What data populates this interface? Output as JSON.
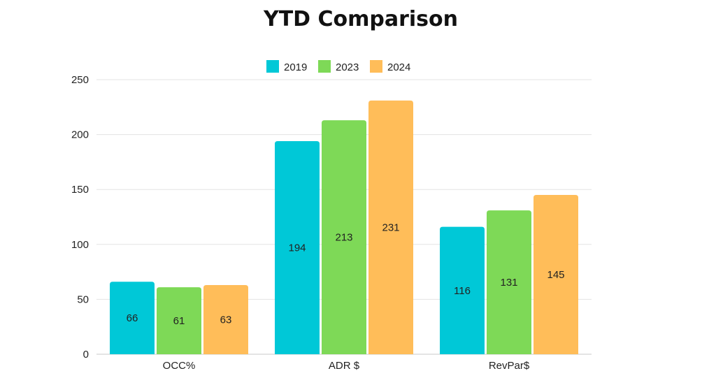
{
  "chart_data": {
    "type": "bar",
    "title": "YTD Comparison",
    "categories": [
      "OCC%",
      "ADR $",
      "RevPar$"
    ],
    "series": [
      {
        "name": "2019",
        "color": "#00C8D7",
        "values": [
          66,
          194,
          116
        ]
      },
      {
        "name": "2023",
        "color": "#7ED957",
        "values": [
          61,
          213,
          131
        ]
      },
      {
        "name": "2024",
        "color": "#FFBD59",
        "values": [
          63,
          231,
          145
        ]
      }
    ],
    "ylim": [
      0,
      250
    ],
    "yticks": [
      0,
      50,
      100,
      150,
      200,
      250
    ],
    "grid": true,
    "legend_position": "top-center",
    "data_labels": "inside-center"
  }
}
